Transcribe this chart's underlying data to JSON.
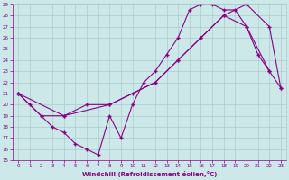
{
  "xlabel": "Windchill (Refroidissement éolien,°C)",
  "xlim": [
    -0.5,
    23.5
  ],
  "ylim": [
    15,
    29
  ],
  "xticks": [
    0,
    1,
    2,
    3,
    4,
    5,
    6,
    7,
    8,
    9,
    10,
    11,
    12,
    13,
    14,
    15,
    16,
    17,
    18,
    19,
    20,
    21,
    22,
    23
  ],
  "yticks": [
    15,
    16,
    17,
    18,
    19,
    20,
    21,
    22,
    23,
    24,
    25,
    26,
    27,
    28,
    29
  ],
  "bg_color": "#cce8e8",
  "line_color": "#880088",
  "grid_color": "#aacaca",
  "line1_x": [
    0,
    1,
    2,
    3,
    4,
    5,
    6,
    7,
    8,
    9,
    10,
    11,
    12,
    13,
    14,
    15,
    16,
    17,
    18,
    19,
    20,
    21,
    22,
    23
  ],
  "line1_y": [
    21,
    20,
    19,
    18,
    17.5,
    16.5,
    16,
    15.5,
    19,
    17,
    20,
    22,
    23,
    24.5,
    26,
    28.5,
    29,
    29,
    28.5,
    28.5,
    27,
    24.5,
    23,
    21.5
  ],
  "line2_x": [
    0,
    2,
    4,
    6,
    8,
    10,
    12,
    14,
    16,
    18,
    20,
    22
  ],
  "line2_y": [
    21,
    19,
    19,
    20,
    20,
    21,
    22,
    24,
    26,
    28,
    27,
    23
  ],
  "line3_x": [
    0,
    4,
    8,
    12,
    14,
    16,
    18,
    20,
    22,
    23
  ],
  "line3_y": [
    21,
    19,
    20,
    22,
    24,
    26,
    28,
    29,
    27,
    21.5
  ]
}
